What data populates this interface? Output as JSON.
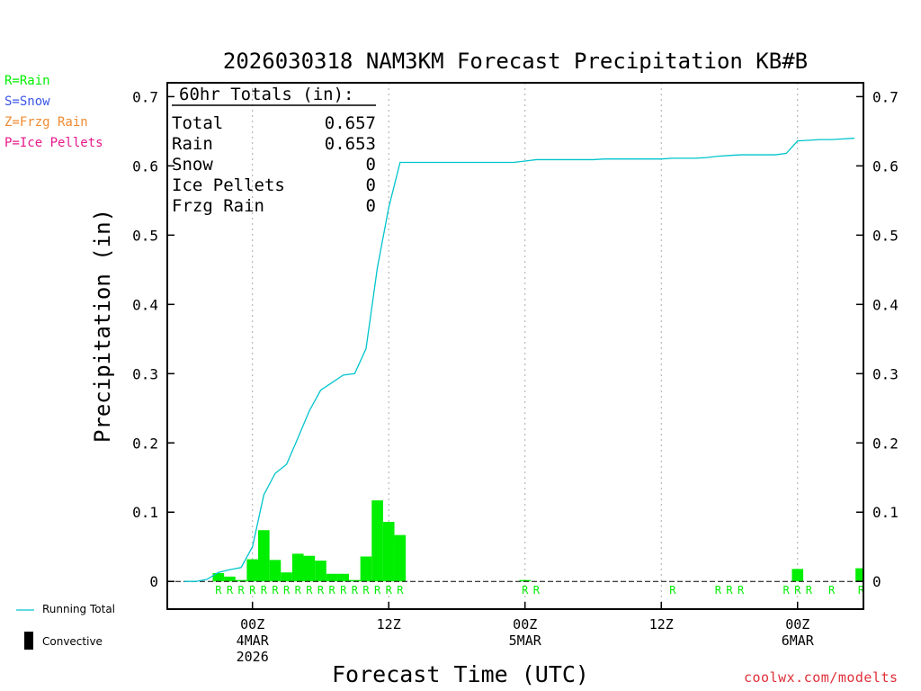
{
  "colors": {
    "rain": "#00ee00",
    "snow": "#3a56e8",
    "frzg": "#f08a30",
    "ice": "#e8188c",
    "running": "#00c4cc",
    "axis": "#000000",
    "grid": "#aaaaaa",
    "credit": "#e0303a"
  },
  "ptype_legend": [
    {
      "label": "R=Rain",
      "color": "#00ee00"
    },
    {
      "label": "S=Snow",
      "color": "#3a56e8"
    },
    {
      "label": "Z=Frzg Rain",
      "color": "#f08a30"
    },
    {
      "label": "P=Ice Pellets",
      "color": "#e8188c"
    }
  ],
  "bottom_legend": {
    "running_label": "Running Total",
    "convective_label": "Convective"
  },
  "credit": "coolwx.com/modelts",
  "chart_data": {
    "type": "bar",
    "title": "2026030318 NAM3KM Forecast Precipitation KB#B",
    "xlabel": "Forecast Time (UTC)",
    "ylabel": "Precipitation (in)",
    "ylim": [
      -0.04,
      0.72
    ],
    "xlim": [
      -1.5,
      59.8
    ],
    "yticks": [
      0,
      0.1,
      0.2,
      0.3,
      0.4,
      0.5,
      0.6,
      0.7
    ],
    "ytick_labels": [
      "0",
      "0.1",
      "0.2",
      "0.3",
      "0.4",
      "0.5",
      "0.6",
      "0.7"
    ],
    "xticks": [
      {
        "hour": 6,
        "lines": [
          "00Z",
          "4MAR",
          "2026"
        ]
      },
      {
        "hour": 18,
        "lines": [
          "12Z"
        ]
      },
      {
        "hour": 30,
        "lines": [
          "00Z",
          "5MAR"
        ]
      },
      {
        "hour": 42,
        "lines": [
          "12Z"
        ]
      },
      {
        "hour": 54,
        "lines": [
          "00Z",
          "6MAR"
        ]
      }
    ],
    "totals_box": {
      "header": "60hr Totals (in):",
      "rows": [
        {
          "label": "Total",
          "value": "0.657"
        },
        {
          "label": "Rain",
          "value": "0.653"
        },
        {
          "label": "Snow",
          "value": "0"
        },
        {
          "label": "Ice Pellets",
          "value": "0"
        },
        {
          "label": "Frzg Rain",
          "value": "0"
        }
      ]
    },
    "bars": [
      {
        "hour": 3,
        "value": 0.012
      },
      {
        "hour": 4,
        "value": 0.007
      },
      {
        "hour": 5,
        "value": 0.002
      },
      {
        "hour": 6,
        "value": 0.032
      },
      {
        "hour": 7,
        "value": 0.074
      },
      {
        "hour": 8,
        "value": 0.031
      },
      {
        "hour": 9,
        "value": 0.013
      },
      {
        "hour": 10,
        "value": 0.04
      },
      {
        "hour": 11,
        "value": 0.037
      },
      {
        "hour": 12,
        "value": 0.03
      },
      {
        "hour": 13,
        "value": 0.011
      },
      {
        "hour": 14,
        "value": 0.011
      },
      {
        "hour": 15,
        "value": 0.002
      },
      {
        "hour": 16,
        "value": 0.036
      },
      {
        "hour": 17,
        "value": 0.117
      },
      {
        "hour": 18,
        "value": 0.086
      },
      {
        "hour": 19,
        "value": 0.067
      },
      {
        "hour": 30,
        "value": 0.002
      },
      {
        "hour": 54,
        "value": 0.018
      },
      {
        "hour": 59.6,
        "value": 0.019
      }
    ],
    "running_total": {
      "name": "Running Total",
      "x": [
        0,
        1,
        2,
        3,
        4,
        5,
        6,
        7,
        8,
        9,
        10,
        11,
        12,
        13,
        14,
        15,
        16,
        17,
        18,
        19,
        20,
        21,
        22,
        23,
        24,
        25,
        26,
        27,
        28,
        29,
        30,
        31,
        32,
        33,
        34,
        35,
        36,
        37,
        38,
        39,
        40,
        41,
        42,
        43,
        44,
        45,
        46,
        47,
        48,
        49,
        50,
        51,
        52,
        53,
        54,
        55,
        56,
        57,
        58,
        59
      ],
      "y": [
        0,
        0,
        0.003,
        0.013,
        0.017,
        0.02,
        0.05,
        0.125,
        0.156,
        0.169,
        0.207,
        0.246,
        0.276,
        0.287,
        0.298,
        0.3,
        0.336,
        0.453,
        0.54,
        0.605,
        0.605,
        0.605,
        0.605,
        0.605,
        0.605,
        0.605,
        0.605,
        0.605,
        0.605,
        0.605,
        0.607,
        0.609,
        0.609,
        0.609,
        0.609,
        0.609,
        0.609,
        0.61,
        0.61,
        0.61,
        0.61,
        0.61,
        0.61,
        0.611,
        0.611,
        0.611,
        0.612,
        0.614,
        0.615,
        0.616,
        0.616,
        0.616,
        0.616,
        0.618,
        0.636,
        0.637,
        0.638,
        0.638,
        0.639,
        0.64
      ]
    },
    "ptype_labels": {
      "letter": "R",
      "hours": [
        3,
        4,
        5,
        6,
        7,
        8,
        9,
        10,
        11,
        12,
        13,
        14,
        15,
        16,
        17,
        18,
        19,
        30,
        31,
        43,
        47,
        48,
        49,
        53,
        54,
        55,
        57,
        59.6
      ]
    }
  }
}
